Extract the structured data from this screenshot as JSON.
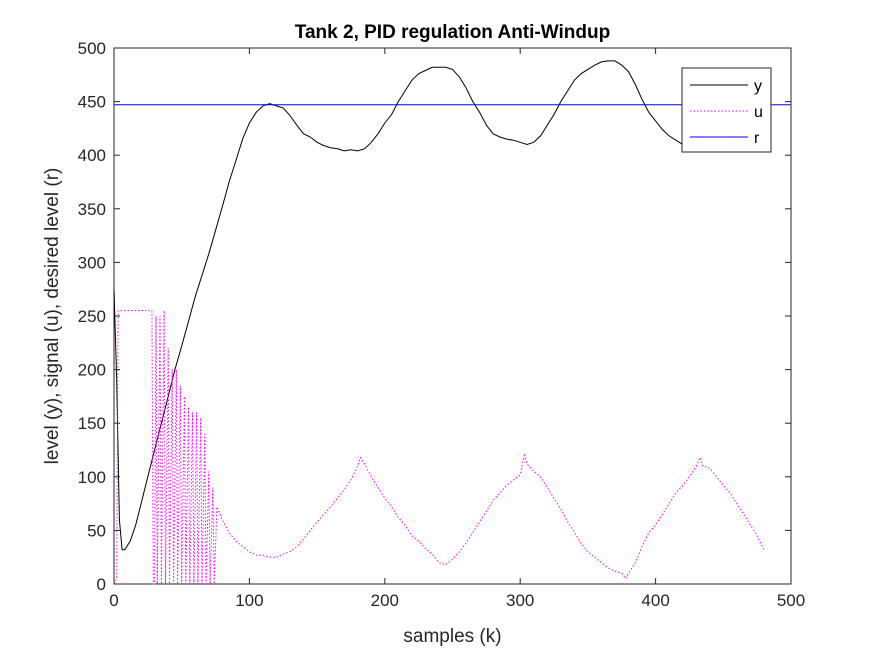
{
  "chart_data": {
    "type": "line",
    "title": "Tank 2, PID regulation Anti-Windup",
    "xlabel": "samples (k)",
    "ylabel": "level (y), signal (u), desired level (r)",
    "xlim": [
      0,
      500
    ],
    "ylim": [
      0,
      500
    ],
    "xticks": [
      0,
      100,
      200,
      300,
      400,
      500
    ],
    "yticks": [
      0,
      50,
      100,
      150,
      200,
      250,
      300,
      350,
      400,
      450,
      500
    ],
    "xtick_labels": [
      "0",
      "100",
      "200",
      "300",
      "400",
      "500"
    ],
    "ytick_labels": [
      "0",
      "50",
      "100",
      "150",
      "200",
      "250",
      "300",
      "350",
      "400",
      "450",
      "500"
    ],
    "grid": false,
    "legend_position": "top-right",
    "series": [
      {
        "name": "y",
        "color": "#000000",
        "style": "solid",
        "points": [
          [
            0,
            275
          ],
          [
            2,
            190
          ],
          [
            4,
            60
          ],
          [
            6,
            32
          ],
          [
            8,
            32
          ],
          [
            12,
            40
          ],
          [
            16,
            55
          ],
          [
            20,
            75
          ],
          [
            25,
            100
          ],
          [
            30,
            125
          ],
          [
            35,
            150
          ],
          [
            40,
            175
          ],
          [
            45,
            200
          ],
          [
            50,
            222
          ],
          [
            55,
            245
          ],
          [
            60,
            268
          ],
          [
            65,
            288
          ],
          [
            70,
            308
          ],
          [
            75,
            330
          ],
          [
            80,
            352
          ],
          [
            85,
            375
          ],
          [
            90,
            395
          ],
          [
            95,
            415
          ],
          [
            100,
            430
          ],
          [
            105,
            440
          ],
          [
            110,
            446
          ],
          [
            115,
            448
          ],
          [
            120,
            446
          ],
          [
            125,
            444
          ],
          [
            130,
            437
          ],
          [
            135,
            428
          ],
          [
            140,
            420
          ],
          [
            145,
            417
          ],
          [
            150,
            412
          ],
          [
            155,
            409
          ],
          [
            160,
            407
          ],
          [
            165,
            406
          ],
          [
            170,
            404
          ],
          [
            175,
            405
          ],
          [
            180,
            404
          ],
          [
            185,
            406
          ],
          [
            190,
            412
          ],
          [
            195,
            420
          ],
          [
            200,
            430
          ],
          [
            205,
            438
          ],
          [
            210,
            450
          ],
          [
            215,
            460
          ],
          [
            220,
            470
          ],
          [
            225,
            476
          ],
          [
            230,
            479
          ],
          [
            235,
            482
          ],
          [
            240,
            482
          ],
          [
            245,
            482
          ],
          [
            250,
            480
          ],
          [
            255,
            473
          ],
          [
            260,
            463
          ],
          [
            265,
            450
          ],
          [
            270,
            440
          ],
          [
            275,
            428
          ],
          [
            280,
            420
          ],
          [
            285,
            417
          ],
          [
            290,
            415
          ],
          [
            295,
            414
          ],
          [
            300,
            412
          ],
          [
            305,
            410
          ],
          [
            310,
            412
          ],
          [
            315,
            418
          ],
          [
            320,
            428
          ],
          [
            325,
            438
          ],
          [
            330,
            450
          ],
          [
            335,
            460
          ],
          [
            340,
            470
          ],
          [
            345,
            476
          ],
          [
            350,
            480
          ],
          [
            355,
            484
          ],
          [
            360,
            487
          ],
          [
            365,
            488
          ],
          [
            370,
            488
          ],
          [
            375,
            484
          ],
          [
            380,
            478
          ],
          [
            385,
            466
          ],
          [
            390,
            452
          ],
          [
            395,
            440
          ],
          [
            400,
            432
          ],
          [
            405,
            424
          ],
          [
            410,
            418
          ],
          [
            415,
            414
          ],
          [
            420,
            410
          ],
          [
            425,
            410
          ]
        ]
      },
      {
        "name": "u",
        "color": "#ff00ff",
        "style": "dotted",
        "points": [
          [
            0,
            0
          ],
          [
            2,
            5
          ],
          [
            3,
            255
          ],
          [
            28,
            255
          ],
          [
            29,
            0
          ],
          [
            30,
            0
          ],
          [
            31,
            250
          ],
          [
            32,
            0
          ],
          [
            34,
            250
          ],
          [
            35,
            0
          ],
          [
            37,
            255
          ],
          [
            38,
            0
          ],
          [
            40,
            220
          ],
          [
            41,
            0
          ],
          [
            43,
            200
          ],
          [
            44,
            0
          ],
          [
            46,
            200
          ],
          [
            47,
            0
          ],
          [
            49,
            185
          ],
          [
            50,
            0
          ],
          [
            52,
            175
          ],
          [
            53,
            0
          ],
          [
            55,
            165
          ],
          [
            56,
            0
          ],
          [
            58,
            160
          ],
          [
            59,
            0
          ],
          [
            61,
            160
          ],
          [
            62,
            0
          ],
          [
            64,
            155
          ],
          [
            65,
            0
          ],
          [
            67,
            140
          ],
          [
            68,
            0
          ],
          [
            70,
            105
          ],
          [
            71,
            0
          ],
          [
            73,
            90
          ],
          [
            74,
            0
          ],
          [
            76,
            72
          ],
          [
            80,
            60
          ],
          [
            85,
            48
          ],
          [
            90,
            40
          ],
          [
            95,
            35
          ],
          [
            100,
            30
          ],
          [
            105,
            27
          ],
          [
            110,
            27
          ],
          [
            115,
            25
          ],
          [
            120,
            25
          ],
          [
            125,
            28
          ],
          [
            130,
            30
          ],
          [
            135,
            35
          ],
          [
            140,
            42
          ],
          [
            145,
            50
          ],
          [
            150,
            58
          ],
          [
            155,
            65
          ],
          [
            160,
            72
          ],
          [
            165,
            80
          ],
          [
            170,
            88
          ],
          [
            175,
            97
          ],
          [
            180,
            110
          ],
          [
            182,
            118
          ],
          [
            185,
            112
          ],
          [
            190,
            100
          ],
          [
            195,
            90
          ],
          [
            200,
            80
          ],
          [
            205,
            72
          ],
          [
            210,
            62
          ],
          [
            215,
            55
          ],
          [
            220,
            45
          ],
          [
            225,
            40
          ],
          [
            230,
            33
          ],
          [
            235,
            28
          ],
          [
            240,
            20
          ],
          [
            245,
            18
          ],
          [
            250,
            23
          ],
          [
            255,
            30
          ],
          [
            260,
            38
          ],
          [
            265,
            48
          ],
          [
            270,
            58
          ],
          [
            275,
            68
          ],
          [
            280,
            78
          ],
          [
            285,
            85
          ],
          [
            290,
            92
          ],
          [
            295,
            97
          ],
          [
            300,
            102
          ],
          [
            303,
            120
          ],
          [
            305,
            112
          ],
          [
            310,
            105
          ],
          [
            315,
            100
          ],
          [
            320,
            90
          ],
          [
            325,
            80
          ],
          [
            330,
            70
          ],
          [
            335,
            58
          ],
          [
            340,
            48
          ],
          [
            345,
            38
          ],
          [
            350,
            30
          ],
          [
            355,
            25
          ],
          [
            360,
            20
          ],
          [
            365,
            15
          ],
          [
            370,
            12
          ],
          [
            375,
            10
          ],
          [
            378,
            5
          ],
          [
            380,
            10
          ],
          [
            385,
            20
          ],
          [
            390,
            35
          ],
          [
            395,
            48
          ],
          [
            400,
            55
          ],
          [
            405,
            65
          ],
          [
            410,
            75
          ],
          [
            415,
            85
          ],
          [
            420,
            92
          ],
          [
            425,
            100
          ],
          [
            430,
            110
          ],
          [
            433,
            118
          ],
          [
            435,
            110
          ],
          [
            440,
            108
          ],
          [
            445,
            100
          ],
          [
            450,
            92
          ],
          [
            455,
            85
          ],
          [
            460,
            75
          ],
          [
            465,
            65
          ],
          [
            470,
            55
          ],
          [
            475,
            45
          ],
          [
            480,
            32
          ]
        ]
      },
      {
        "name": "r",
        "color": "#0000ff",
        "style": "solid",
        "points": [
          [
            0,
            447
          ],
          [
            500,
            447
          ]
        ]
      }
    ]
  }
}
